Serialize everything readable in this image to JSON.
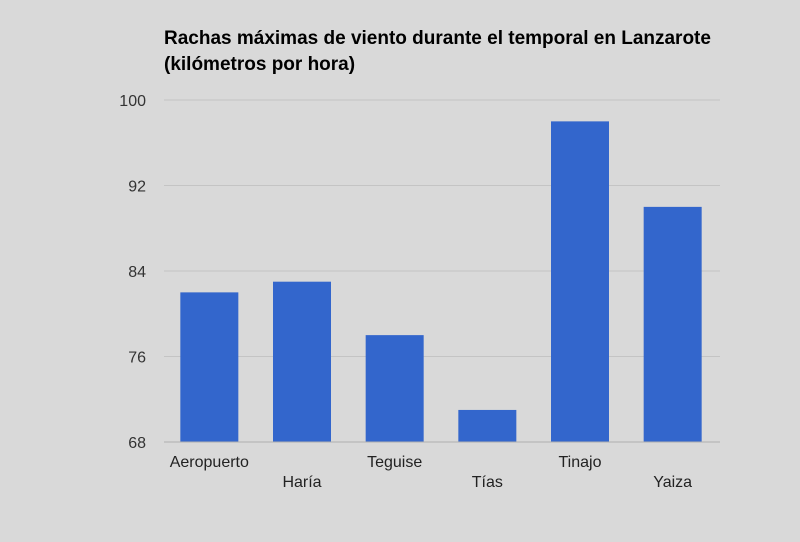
{
  "chart_data": {
    "type": "bar",
    "title": "Rachas máximas de viento durante el temporal en Lanzarote (kilómetros por hora)",
    "categories": [
      "Aeropuerto",
      "Haría",
      "Teguise",
      "Tías",
      "Tinajo",
      "Yaiza"
    ],
    "values": [
      82,
      83,
      78,
      71,
      98,
      90
    ],
    "ylim": [
      68,
      100
    ],
    "yticks": [
      68,
      76,
      84,
      92,
      100
    ],
    "xlabel": "",
    "ylabel": "",
    "grid": true,
    "legend": "none",
    "bar_color": "#3366cc"
  }
}
